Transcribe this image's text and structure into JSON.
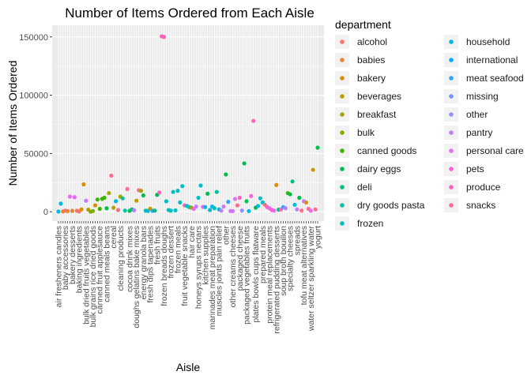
{
  "chart_data": {
    "type": "scatter",
    "title": "Number of Items Ordered from Each Aisle",
    "xlabel": "Aisle",
    "ylabel": "Number of Items Ordered",
    "ylim": [
      -8000,
      160000
    ],
    "yticks": [
      0,
      50000,
      100000,
      150000
    ],
    "ytick_labels": [
      "0",
      "50000",
      "100000",
      "150000"
    ],
    "legend": {
      "title": "department",
      "position": "right",
      "columns": 2
    },
    "departments": [
      {
        "name": "alcohol",
        "color": "#F8766D"
      },
      {
        "name": "babies",
        "color": "#EB8335"
      },
      {
        "name": "bakery",
        "color": "#D89000"
      },
      {
        "name": "beverages",
        "color": "#BF9C00"
      },
      {
        "name": "breakfast",
        "color": "#A3A500"
      },
      {
        "name": "bulk",
        "color": "#7CAE00"
      },
      {
        "name": "canned goods",
        "color": "#39B600"
      },
      {
        "name": "dairy eggs",
        "color": "#00BB4E"
      },
      {
        "name": "deli",
        "color": "#00BF7D"
      },
      {
        "name": "dry goods pasta",
        "color": "#00C1A3"
      },
      {
        "name": "frozen",
        "color": "#00BFC4"
      },
      {
        "name": "household",
        "color": "#00BAE0"
      },
      {
        "name": "international",
        "color": "#00B0F6"
      },
      {
        "name": "meat seafood",
        "color": "#35A2FF"
      },
      {
        "name": "missing",
        "color": "#6F95FF"
      },
      {
        "name": "other",
        "color": "#9590FF"
      },
      {
        "name": "pantry",
        "color": "#C77CFF"
      },
      {
        "name": "personal care",
        "color": "#E76BF3"
      },
      {
        "name": "pets",
        "color": "#FA62DB"
      },
      {
        "name": "produce",
        "color": "#FF62BC"
      },
      {
        "name": "snacks",
        "color": "#FF6C90"
      }
    ],
    "x_tick_labels_visible": [
      "air fresheners candles",
      "baby accessories",
      "bakery desserts",
      "baking ingredients",
      "bulk dried fruits vegetables",
      "bulk grains rice dried goods",
      "canned fruit applesauce",
      "canned meals beans",
      "cereal",
      "cleaning products",
      "cocoa drink mixes",
      "doughs gelatins bake mixes",
      "energy granola bars",
      "fresh dips tapenades",
      "fresh fruits",
      "frozen breads doughs",
      "frozen dessert",
      "frozen meals",
      "fruit vegetable snacks",
      "hair care",
      "honeys syrups nectars",
      "kitchen supplies",
      "marinades meat preparation",
      "muscles joints pain relief",
      "other",
      "other creams cheeses",
      "packaged cheese",
      "packaged vegetables fruits",
      "plates bowls cups flatware",
      "prepared meals",
      "protein meal replacements",
      "refrigerated pudding desserts",
      "soup broth bouillon",
      "specialty cheeses",
      "spreads",
      "tofu meat alternatives",
      "water seltzer sparkling water",
      "yogurt"
    ],
    "points": [
      {
        "x": 1,
        "y": 200,
        "department": "household"
      },
      {
        "x": 2,
        "y": 7000,
        "department": "household"
      },
      {
        "x": 3,
        "y": 300,
        "department": "babies"
      },
      {
        "x": 4,
        "y": 900,
        "department": "alcohol"
      },
      {
        "x": 5,
        "y": 600,
        "department": "babies"
      },
      {
        "x": 6,
        "y": 13000,
        "department": "personal care"
      },
      {
        "x": 7,
        "y": 800,
        "department": "babies"
      },
      {
        "x": 8,
        "y": 12500,
        "department": "personal care"
      },
      {
        "x": 9,
        "y": 900,
        "department": "alcohol"
      },
      {
        "x": 10,
        "y": 300,
        "department": "alcohol"
      },
      {
        "x": 11,
        "y": 2000,
        "department": "bakery"
      },
      {
        "x": 12,
        "y": 23500,
        "department": "bakery"
      },
      {
        "x": 13,
        "y": 9500,
        "department": "pantry"
      },
      {
        "x": 14,
        "y": 1800,
        "department": "beverages"
      },
      {
        "x": 15,
        "y": 100,
        "department": "bulk"
      },
      {
        "x": 16,
        "y": 600,
        "department": "bulk"
      },
      {
        "x": 17,
        "y": 5500,
        "department": "bakery"
      },
      {
        "x": 18,
        "y": 10500,
        "department": "canned goods"
      },
      {
        "x": 19,
        "y": 2500,
        "department": "canned goods"
      },
      {
        "x": 20,
        "y": 11000,
        "department": "canned goods"
      },
      {
        "x": 21,
        "y": 12000,
        "department": "canned goods"
      },
      {
        "x": 22,
        "y": 3000,
        "department": "dairy eggs"
      },
      {
        "x": 23,
        "y": 16000,
        "department": "breakfast"
      },
      {
        "x": 24,
        "y": 31000,
        "department": "snacks"
      },
      {
        "x": 25,
        "y": 3500,
        "department": "beverages"
      },
      {
        "x": 26,
        "y": 9000,
        "department": "household"
      },
      {
        "x": 27,
        "y": 1500,
        "department": "snacks"
      },
      {
        "x": 28,
        "y": 13000,
        "department": "breakfast"
      },
      {
        "x": 29,
        "y": 11500,
        "department": "dry goods pasta"
      },
      {
        "x": 30,
        "y": 1000,
        "department": "dry goods pasta"
      },
      {
        "x": 31,
        "y": 19500,
        "department": "snacks"
      },
      {
        "x": 32,
        "y": 800,
        "department": "dairy eggs"
      },
      {
        "x": 33,
        "y": 2000,
        "department": "deli"
      },
      {
        "x": 34,
        "y": 1200,
        "department": "pantry"
      },
      {
        "x": 35,
        "y": 9500,
        "department": "beverages"
      },
      {
        "x": 36,
        "y": 18500,
        "department": "snacks"
      },
      {
        "x": 37,
        "y": 18000,
        "department": "breakfast"
      },
      {
        "x": 38,
        "y": 14000,
        "department": "dairy eggs"
      },
      {
        "x": 39,
        "y": 900,
        "department": "dry goods pasta"
      },
      {
        "x": 40,
        "y": 700,
        "department": "international"
      },
      {
        "x": 41,
        "y": 2600,
        "department": "beverages"
      },
      {
        "x": 42,
        "y": 800,
        "department": "meat seafood"
      },
      {
        "x": 43,
        "y": 1000,
        "department": "deli"
      },
      {
        "x": 44,
        "y": 14500,
        "department": "dairy eggs"
      },
      {
        "x": 45,
        "y": 16500,
        "department": "produce"
      },
      {
        "x": 46,
        "y": 150500,
        "department": "produce"
      },
      {
        "x": 47,
        "y": 150000,
        "department": "produce"
      },
      {
        "x": 48,
        "y": 9000,
        "department": "frozen"
      },
      {
        "x": 49,
        "y": 1500,
        "department": "frozen"
      },
      {
        "x": 50,
        "y": 900,
        "department": "frozen"
      },
      {
        "x": 51,
        "y": 17000,
        "department": "frozen"
      },
      {
        "x": 52,
        "y": 1200,
        "department": "frozen"
      },
      {
        "x": 53,
        "y": 18000,
        "department": "frozen"
      },
      {
        "x": 54,
        "y": 8000,
        "department": "frozen"
      },
      {
        "x": 55,
        "y": 22000,
        "department": "frozen"
      },
      {
        "x": 56,
        "y": 5500,
        "department": "produce"
      },
      {
        "x": 57,
        "y": 5000,
        "department": "frozen"
      },
      {
        "x": 58,
        "y": 4000,
        "department": "frozen"
      },
      {
        "x": 59,
        "y": 3500,
        "department": "breakfast"
      },
      {
        "x": 60,
        "y": 2500,
        "department": "personal care"
      },
      {
        "x": 61,
        "y": 4500,
        "department": "pantry"
      },
      {
        "x": 62,
        "y": 12000,
        "department": "frozen"
      },
      {
        "x": 63,
        "y": 22500,
        "department": "frozen"
      },
      {
        "x": 64,
        "y": 4200,
        "department": "personal care"
      },
      {
        "x": 65,
        "y": 4000,
        "department": "household"
      },
      {
        "x": 66,
        "y": 15500,
        "department": "dairy eggs"
      },
      {
        "x": 67,
        "y": 1500,
        "department": "household"
      },
      {
        "x": 68,
        "y": 4500,
        "department": "household"
      },
      {
        "x": 69,
        "y": 3000,
        "department": "frozen"
      },
      {
        "x": 70,
        "y": 17000,
        "department": "dry goods pasta"
      },
      {
        "x": 71,
        "y": 2000,
        "department": "household"
      },
      {
        "x": 72,
        "y": 1000,
        "department": "pantry"
      },
      {
        "x": 73,
        "y": 4500,
        "department": "pantry"
      },
      {
        "x": 74,
        "y": 32000,
        "department": "dairy eggs"
      },
      {
        "x": 75,
        "y": 8500,
        "department": "meat seafood"
      },
      {
        "x": 76,
        "y": 600,
        "department": "personal care"
      },
      {
        "x": 77,
        "y": 600,
        "department": "pantry"
      },
      {
        "x": 78,
        "y": 11000,
        "department": "personal care"
      },
      {
        "x": 79,
        "y": 5500,
        "department": "snacks"
      },
      {
        "x": 80,
        "y": 12000,
        "department": "produce"
      },
      {
        "x": 81,
        "y": 1000,
        "department": "other"
      },
      {
        "x": 82,
        "y": 41500,
        "department": "dairy eggs"
      },
      {
        "x": 83,
        "y": 9000,
        "department": "dairy eggs"
      },
      {
        "x": 84,
        "y": 600,
        "department": "household"
      },
      {
        "x": 85,
        "y": 13500,
        "department": "pets"
      },
      {
        "x": 86,
        "y": 78000,
        "department": "produce"
      },
      {
        "x": 87,
        "y": 3500,
        "department": "dairy eggs"
      },
      {
        "x": 88,
        "y": 5000,
        "department": "household"
      },
      {
        "x": 89,
        "y": 11500,
        "department": "frozen"
      },
      {
        "x": 90,
        "y": 8000,
        "department": "frozen"
      },
      {
        "x": 91,
        "y": 6000,
        "department": "snacks"
      },
      {
        "x": 92,
        "y": 4000,
        "department": "produce"
      },
      {
        "x": 93,
        "y": 3000,
        "department": "personal care"
      },
      {
        "x": 94,
        "y": 1500,
        "department": "produce"
      },
      {
        "x": 95,
        "y": 1000,
        "department": "personal care"
      },
      {
        "x": 96,
        "y": 23000,
        "department": "bakery"
      },
      {
        "x": 97,
        "y": 1800,
        "department": "deli"
      },
      {
        "x": 98,
        "y": 2000,
        "department": "produce"
      },
      {
        "x": 99,
        "y": 4000,
        "department": "meat seafood"
      },
      {
        "x": 100,
        "y": 3000,
        "department": "pantry"
      },
      {
        "x": 101,
        "y": 16000,
        "department": "canned goods"
      },
      {
        "x": 102,
        "y": 15000,
        "department": "dairy eggs"
      },
      {
        "x": 103,
        "y": 26000,
        "department": "deli"
      },
      {
        "x": 104,
        "y": 6000,
        "department": "household"
      },
      {
        "x": 105,
        "y": 2000,
        "department": "pantry"
      },
      {
        "x": 106,
        "y": 12000,
        "department": "dairy eggs"
      },
      {
        "x": 107,
        "y": 1000,
        "department": "snacks"
      },
      {
        "x": 108,
        "y": 9000,
        "department": "pantry"
      },
      {
        "x": 109,
        "y": 8000,
        "department": "bakery"
      },
      {
        "x": 110,
        "y": 2500,
        "department": "snacks"
      },
      {
        "x": 111,
        "y": 900,
        "department": "personal care"
      },
      {
        "x": 112,
        "y": 36000,
        "department": "beverages"
      },
      {
        "x": 113,
        "y": 2000,
        "department": "snacks"
      },
      {
        "x": 114,
        "y": 55000,
        "department": "dairy eggs"
      }
    ]
  }
}
